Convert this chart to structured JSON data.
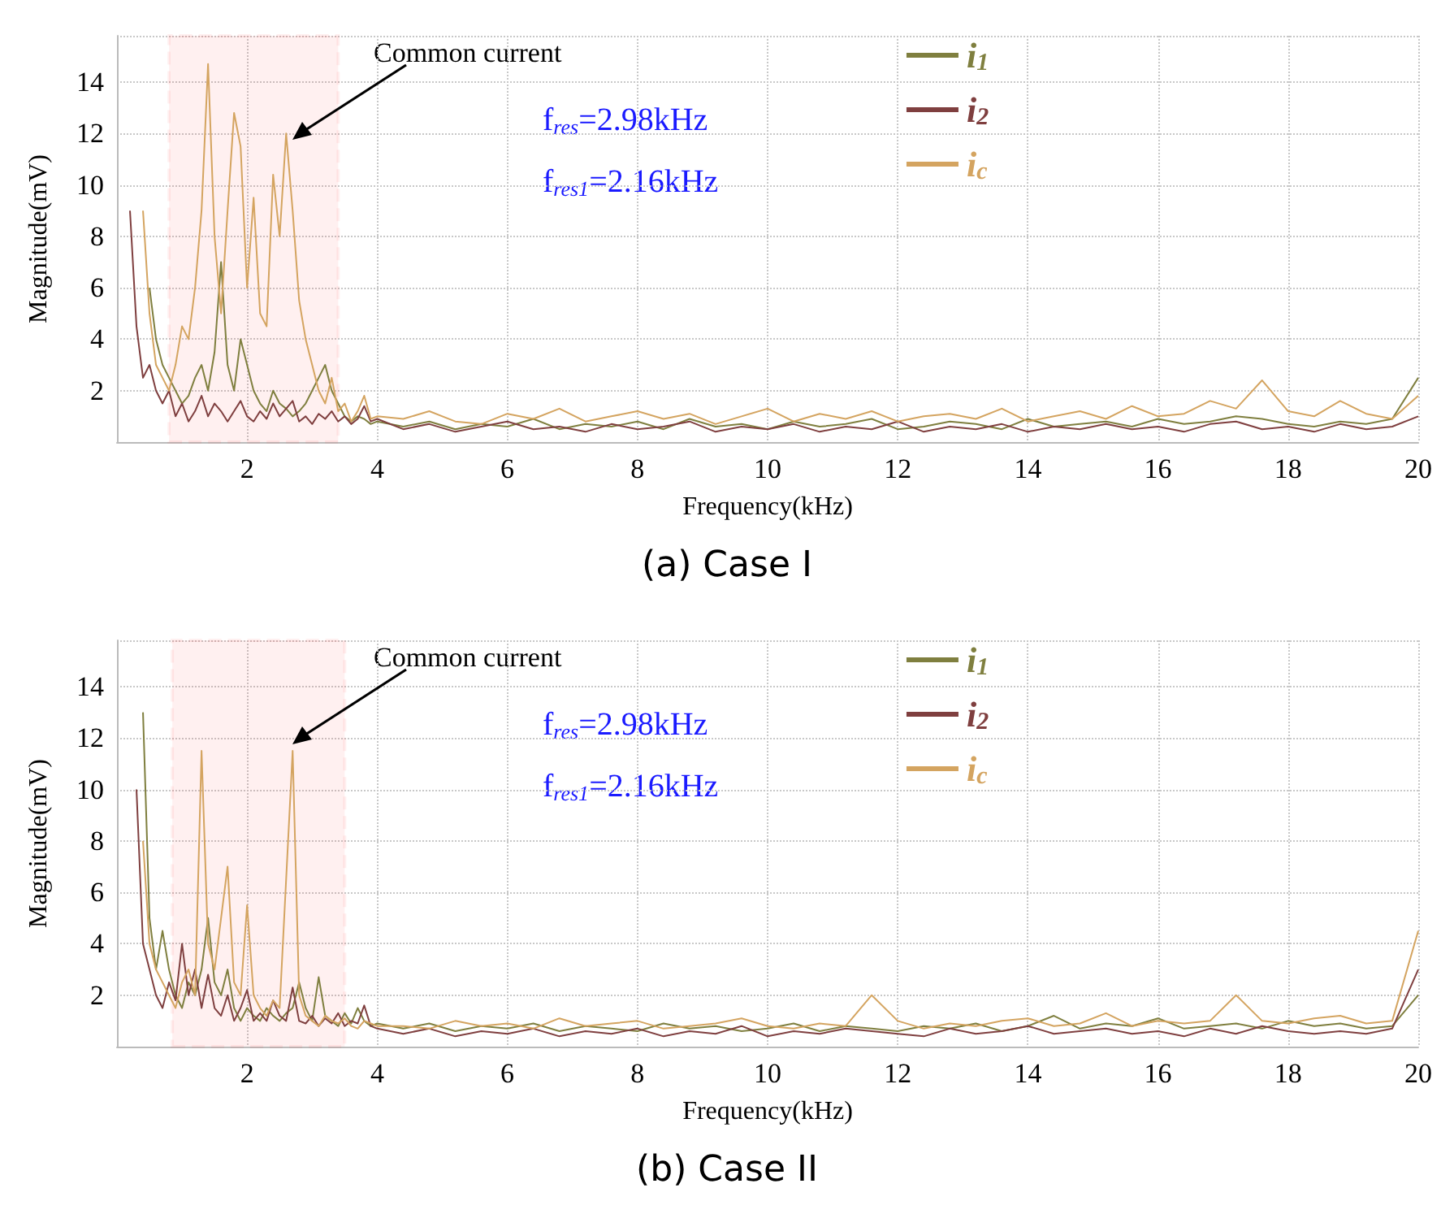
{
  "chart_data": [
    {
      "type": "line",
      "title": "(a) Case I",
      "xlabel": "Frequency(kHz)",
      "ylabel": "Magnitude(mV)",
      "xlim": [
        0,
        20
      ],
      "ylim": [
        0,
        15.8
      ],
      "xticks": [
        2,
        4,
        6,
        8,
        10,
        12,
        14,
        16,
        18,
        20
      ],
      "yticks": [
        2,
        4,
        6,
        8,
        10,
        12,
        14
      ],
      "grid": true,
      "legend": "top",
      "marker": "none",
      "line_style": "solid",
      "annotations": [
        "Common current",
        "f$_{res}$=2.98kHz",
        "f$_{res1}$=2.16kHz"
      ],
      "bands": [
        {
          "axis": "x",
          "from": 0.8,
          "to": 3.4,
          "color": "#ff0000"
        }
      ],
      "x": [
        0.2,
        0.3,
        0.4,
        0.5,
        0.6,
        0.7,
        0.8,
        0.9,
        1.0,
        1.1,
        1.2,
        1.3,
        1.4,
        1.5,
        1.6,
        1.7,
        1.8,
        1.9,
        2.0,
        2.1,
        2.2,
        2.3,
        2.4,
        2.5,
        2.6,
        2.7,
        2.8,
        2.9,
        3.0,
        3.1,
        3.2,
        3.3,
        3.4,
        3.5,
        3.6,
        3.7,
        3.8,
        3.9,
        4.0,
        4.4,
        4.8,
        5.2,
        5.6,
        6.0,
        6.4,
        6.8,
        7.2,
        7.6,
        8.0,
        8.4,
        8.8,
        9.2,
        9.6,
        10.0,
        10.4,
        10.8,
        11.2,
        11.6,
        12.0,
        12.4,
        12.8,
        13.2,
        13.6,
        14.0,
        14.4,
        14.8,
        15.2,
        15.6,
        16.0,
        16.4,
        16.8,
        17.2,
        17.6,
        18.0,
        18.4,
        18.8,
        19.2,
        19.6,
        20.0
      ],
      "series": [
        {
          "name": "i$_{1}$",
          "color": "#7f7f3f",
          "values": [
            null,
            null,
            null,
            6,
            4,
            3,
            2.5,
            2,
            1.5,
            1.8,
            2.5,
            3,
            2,
            3.5,
            7,
            3,
            2,
            4,
            3,
            2,
            1.5,
            1.2,
            2,
            1.5,
            1.3,
            1,
            1.2,
            1.5,
            2,
            2.5,
            3,
            2,
            1.5,
            1,
            0.8,
            1,
            0.9,
            0.7,
            0.8,
            0.6,
            0.8,
            0.5,
            0.7,
            0.6,
            0.9,
            0.5,
            0.7,
            0.6,
            0.8,
            0.5,
            0.9,
            0.6,
            0.7,
            0.5,
            0.8,
            0.6,
            0.7,
            0.9,
            0.5,
            0.6,
            0.8,
            0.7,
            0.5,
            0.9,
            0.6,
            0.7,
            0.8,
            0.6,
            0.9,
            0.7,
            0.8,
            1.0,
            0.9,
            0.7,
            0.6,
            0.8,
            0.7,
            0.9,
            2.5
          ]
        },
        {
          "name": "i$_{2}$",
          "color": "#7f3f3f",
          "values": [
            9,
            4.5,
            2.5,
            3,
            2,
            1.5,
            2,
            1,
            1.5,
            0.8,
            1.2,
            1.8,
            1,
            1.5,
            1.2,
            0.8,
            1.2,
            1.6,
            1,
            0.8,
            1.2,
            0.9,
            1.5,
            1,
            1.3,
            1.6,
            0.8,
            1,
            0.7,
            1.1,
            0.9,
            1.2,
            0.8,
            1,
            0.7,
            0.9,
            1.4,
            0.8,
            0.9,
            0.5,
            0.7,
            0.4,
            0.6,
            0.8,
            0.5,
            0.6,
            0.4,
            0.7,
            0.5,
            0.6,
            0.8,
            0.4,
            0.6,
            0.5,
            0.7,
            0.4,
            0.6,
            0.5,
            0.8,
            0.4,
            0.6,
            0.5,
            0.7,
            0.4,
            0.6,
            0.5,
            0.7,
            0.5,
            0.6,
            0.4,
            0.7,
            0.8,
            0.5,
            0.6,
            0.4,
            0.7,
            0.5,
            0.6,
            1.0
          ]
        },
        {
          "name": "i$_{c}$",
          "color": "#d4a460",
          "values": [
            null,
            null,
            9,
            5,
            3,
            2.5,
            2,
            3,
            4.5,
            4,
            6,
            9,
            14.7,
            8,
            5,
            9,
            12.8,
            11.5,
            6,
            9.5,
            5,
            4.5,
            10.4,
            8,
            12,
            9,
            5.5,
            4,
            3,
            2,
            1.5,
            2.5,
            1.2,
            1.5,
            0.8,
            1.2,
            1.8,
            0.9,
            1.0,
            0.9,
            1.2,
            0.8,
            0.7,
            1.1,
            0.9,
            1.3,
            0.8,
            1.0,
            1.2,
            0.9,
            1.1,
            0.7,
            1.0,
            1.3,
            0.8,
            1.1,
            0.9,
            1.2,
            0.8,
            1.0,
            1.1,
            0.9,
            1.3,
            0.8,
            1.0,
            1.2,
            0.9,
            1.4,
            1.0,
            1.1,
            1.6,
            1.3,
            2.4,
            1.2,
            1.0,
            1.6,
            1.1,
            0.9,
            1.8
          ]
        }
      ]
    },
    {
      "type": "line",
      "title": "(b) Case II",
      "xlabel": "Frequency(kHz)",
      "ylabel": "Magnitude(mV)",
      "xlim": [
        0,
        20
      ],
      "ylim": [
        0,
        15.8
      ],
      "xticks": [
        2,
        4,
        6,
        8,
        10,
        12,
        14,
        16,
        18,
        20
      ],
      "yticks": [
        2,
        4,
        6,
        8,
        10,
        12,
        14
      ],
      "grid": true,
      "legend": "top",
      "marker": "none",
      "line_style": "solid",
      "annotations": [
        "Common current",
        "f$_{res}$=2.98kHz",
        "f$_{res1}$=2.16kHz"
      ],
      "bands": [
        {
          "axis": "x",
          "from": 0.85,
          "to": 3.5,
          "color": "#ff0000"
        }
      ],
      "x": [
        0.3,
        0.4,
        0.5,
        0.6,
        0.7,
        0.8,
        0.9,
        1.0,
        1.1,
        1.2,
        1.3,
        1.4,
        1.5,
        1.6,
        1.7,
        1.8,
        1.9,
        2.0,
        2.1,
        2.2,
        2.3,
        2.4,
        2.5,
        2.6,
        2.7,
        2.8,
        2.9,
        3.0,
        3.1,
        3.2,
        3.3,
        3.4,
        3.5,
        3.6,
        3.7,
        3.8,
        3.9,
        4.0,
        4.4,
        4.8,
        5.2,
        5.6,
        6.0,
        6.4,
        6.8,
        7.2,
        7.6,
        8.0,
        8.4,
        8.8,
        9.2,
        9.6,
        10.0,
        10.4,
        10.8,
        11.2,
        11.6,
        12.0,
        12.4,
        12.8,
        13.2,
        13.6,
        14.0,
        14.4,
        14.8,
        15.2,
        15.6,
        16.0,
        16.4,
        16.8,
        17.2,
        17.6,
        18.0,
        18.4,
        18.8,
        19.2,
        19.6,
        20.0
      ],
      "series": [
        {
          "name": "i$_{1}$",
          "color": "#7f7f3f",
          "values": [
            null,
            13,
            5,
            3,
            4.5,
            3,
            2,
            1.5,
            2.5,
            2,
            3,
            5,
            2.5,
            2,
            3,
            1.5,
            1,
            1.5,
            1.2,
            1,
            1.5,
            1.2,
            1,
            1.3,
            1.5,
            2.5,
            1.5,
            1.0,
            2.7,
            1.2,
            1,
            0.8,
            1.3,
            0.9,
            1.5,
            1,
            0.8,
            0.9,
            0.7,
            0.9,
            0.6,
            0.8,
            0.7,
            0.9,
            0.6,
            0.8,
            0.7,
            0.6,
            0.9,
            0.7,
            0.8,
            0.6,
            0.7,
            0.9,
            0.6,
            0.8,
            0.7,
            0.6,
            0.8,
            0.7,
            0.9,
            0.6,
            0.8,
            1.2,
            0.7,
            0.9,
            0.8,
            1.1,
            0.7,
            0.8,
            0.9,
            0.7,
            1.0,
            0.8,
            0.9,
            0.7,
            0.8,
            2.0
          ]
        },
        {
          "name": "i$_{2}$",
          "color": "#7f3f3f",
          "values": [
            10,
            4,
            3,
            2,
            1.5,
            2.5,
            1.8,
            4,
            2,
            3,
            1.5,
            2.8,
            1.5,
            1.2,
            2,
            1,
            1.5,
            2.2,
            1,
            1.3,
            1,
            1.8,
            1.2,
            1,
            2.3,
            1,
            0.9,
            1.2,
            0.8,
            1.1,
            0.9,
            1.3,
            0.8,
            1.0,
            0.9,
            1.6,
            0.8,
            0.7,
            0.5,
            0.7,
            0.4,
            0.6,
            0.5,
            0.7,
            0.4,
            0.6,
            0.5,
            0.7,
            0.4,
            0.6,
            0.5,
            0.8,
            0.4,
            0.6,
            0.5,
            0.7,
            0.6,
            0.5,
            0.4,
            0.7,
            0.5,
            0.6,
            0.8,
            0.5,
            0.6,
            0.7,
            0.5,
            0.6,
            0.4,
            0.7,
            0.5,
            0.8,
            0.6,
            0.5,
            0.6,
            0.5,
            0.7,
            3.0
          ]
        },
        {
          "name": "i$_{c}$",
          "color": "#d4a460",
          "values": [
            null,
            8,
            4,
            3,
            2.5,
            2,
            1.5,
            2.5,
            3,
            2,
            11.5,
            4,
            3,
            5,
            7,
            2.5,
            2,
            5.5,
            2,
            1.5,
            1.2,
            1.8,
            1.5,
            6.5,
            11.5,
            2,
            1.2,
            1,
            0.8,
            1.2,
            1,
            0.9,
            1.1,
            0.8,
            0.7,
            1.0,
            0.9,
            0.8,
            0.8,
            0.7,
            1.0,
            0.8,
            0.9,
            0.7,
            1.1,
            0.8,
            0.9,
            1.0,
            0.7,
            0.8,
            0.9,
            1.1,
            0.8,
            0.7,
            0.9,
            0.8,
            2.0,
            1.0,
            0.7,
            0.9,
            0.8,
            1.0,
            1.1,
            0.8,
            0.9,
            1.3,
            0.8,
            1.0,
            0.9,
            1.0,
            2.0,
            1.0,
            0.9,
            1.1,
            1.2,
            0.9,
            1.0,
            4.5
          ]
        }
      ]
    }
  ]
}
